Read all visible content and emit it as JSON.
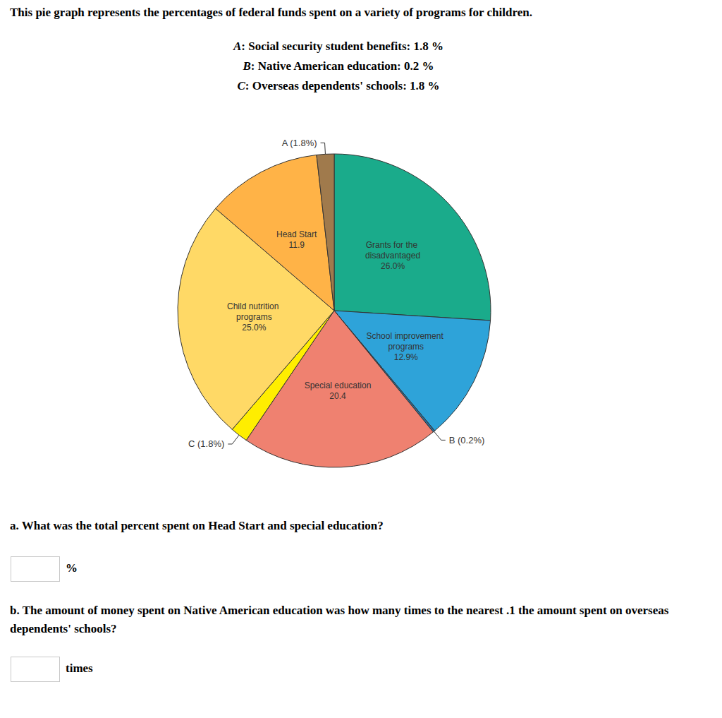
{
  "header": {
    "title": "This pie graph represents the percentages of federal funds spent on a variety of programs for children."
  },
  "key": [
    {
      "letter": "A",
      "text": ": Social security student benefits: 1.8 %"
    },
    {
      "letter": "B",
      "text": ": Native American education: 0.2 %"
    },
    {
      "letter": "C",
      "text": ": Overseas dependents' schools: 1.8 %"
    }
  ],
  "chart_data": {
    "type": "pie",
    "categories": [
      "Grants for the disadvantaged",
      "School improvement programs",
      "B",
      "Special education",
      "C",
      "Child nutrition programs",
      "Head Start",
      "A"
    ],
    "values": [
      26.0,
      12.9,
      0.2,
      20.4,
      1.8,
      25.0,
      11.9,
      1.8
    ],
    "value_labels": [
      "26.0%",
      "12.9%",
      "(0.2%)",
      "20.4",
      "(1.8%)",
      "25.0%",
      "11.9",
      "(1.8%)"
    ],
    "colors": [
      "#1aab8b",
      "#2ea3d9",
      "#2a6f9e",
      "#ef8170",
      "#ffee00",
      "#ffd966",
      "#ffb347",
      "#a07a4c"
    ],
    "data_labels": true
  },
  "questions": [
    {
      "label": "a.",
      "text": "What was the total percent spent on Head Start and special education?",
      "unit": "%"
    },
    {
      "label": "b.",
      "text": "The amount of money spent on Native American education was how many times to the nearest .1 the amount spent on overseas dependents' schools?",
      "unit": "times"
    }
  ]
}
